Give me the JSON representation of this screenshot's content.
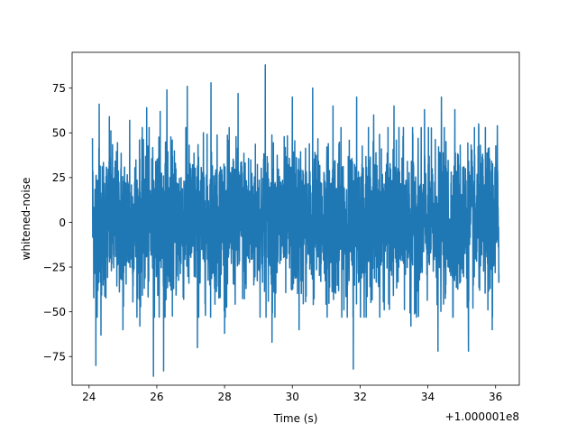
{
  "chart_data": {
    "type": "line",
    "title": "",
    "xlabel": "Time (s)",
    "ylabel": "whitened-noise",
    "x_offset_label": "+1.000001e8",
    "xlim": [
      23.5,
      36.7
    ],
    "ylim": [
      -91,
      95
    ],
    "x_ticks": [
      24,
      26,
      28,
      30,
      32,
      34,
      36
    ],
    "x_tick_labels": [
      "24",
      "26",
      "28",
      "30",
      "32",
      "34",
      "36"
    ],
    "y_ticks": [
      -75,
      -50,
      -25,
      0,
      25,
      50,
      75
    ],
    "y_tick_labels": [
      "−75",
      "−50",
      "−25",
      "0",
      "25",
      "50",
      "75"
    ],
    "grid": false,
    "legend": "none",
    "series": [
      {
        "color": "#1f77b4",
        "x_range": [
          24.1,
          36.1
        ],
        "typical_range": [
          -45,
          45
        ],
        "peaks": [
          {
            "x": 24.1,
            "y": 47
          },
          {
            "x": 24.2,
            "y": -80
          },
          {
            "x": 24.3,
            "y": 66
          },
          {
            "x": 24.35,
            "y": -63
          },
          {
            "x": 24.6,
            "y": 59
          },
          {
            "x": 25.0,
            "y": -60
          },
          {
            "x": 25.2,
            "y": 57
          },
          {
            "x": 25.5,
            "y": -58
          },
          {
            "x": 25.7,
            "y": 64
          },
          {
            "x": 25.9,
            "y": -86
          },
          {
            "x": 26.1,
            "y": 62
          },
          {
            "x": 26.2,
            "y": -83
          },
          {
            "x": 26.3,
            "y": 74
          },
          {
            "x": 26.9,
            "y": 76
          },
          {
            "x": 27.2,
            "y": -70
          },
          {
            "x": 27.6,
            "y": 78
          },
          {
            "x": 28.0,
            "y": -62
          },
          {
            "x": 28.4,
            "y": 72
          },
          {
            "x": 29.2,
            "y": 88
          },
          {
            "x": 29.4,
            "y": -67
          },
          {
            "x": 30.0,
            "y": 70
          },
          {
            "x": 30.2,
            "y": -60
          },
          {
            "x": 30.6,
            "y": 75
          },
          {
            "x": 31.2,
            "y": 65
          },
          {
            "x": 31.8,
            "y": -82
          },
          {
            "x": 31.9,
            "y": 70
          },
          {
            "x": 32.4,
            "y": 60
          },
          {
            "x": 33.0,
            "y": 65
          },
          {
            "x": 33.5,
            "y": -58
          },
          {
            "x": 33.9,
            "y": 63
          },
          {
            "x": 34.3,
            "y": -72
          },
          {
            "x": 34.4,
            "y": 70
          },
          {
            "x": 34.8,
            "y": 63
          },
          {
            "x": 35.2,
            "y": -72
          },
          {
            "x": 35.5,
            "y": 55
          },
          {
            "x": 35.9,
            "y": -60
          },
          {
            "x": 36.05,
            "y": 54
          }
        ]
      }
    ]
  }
}
